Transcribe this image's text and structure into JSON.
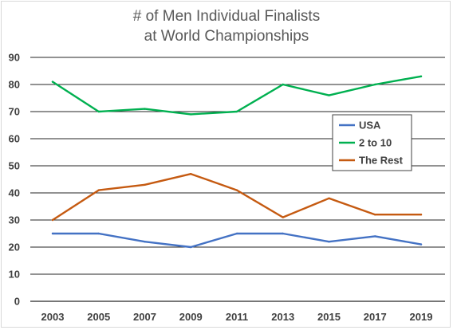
{
  "chart_data": {
    "type": "line",
    "title": [
      "# of Men Individual Finalists",
      "at World Championships"
    ],
    "xlabel": "",
    "ylabel": "",
    "x": [
      "2003",
      "2005",
      "2007",
      "2009",
      "2011",
      "2013",
      "2015",
      "2017",
      "2019"
    ],
    "ylim": [
      0,
      90
    ],
    "yticks": [
      0,
      10,
      20,
      30,
      40,
      50,
      60,
      70,
      80,
      90
    ],
    "grid": true,
    "legend_position": "right",
    "series": [
      {
        "name": "USA",
        "color": "#4472c4",
        "values": [
          25,
          25,
          22,
          20,
          25,
          25,
          22,
          24,
          21
        ]
      },
      {
        "name": "2 to 10",
        "color": "#00b050",
        "values": [
          81,
          70,
          71,
          69,
          70,
          80,
          76,
          80,
          83
        ]
      },
      {
        "name": "The Rest",
        "color": "#c55a11",
        "values": [
          30,
          41,
          43,
          47,
          41,
          31,
          38,
          32,
          32
        ]
      }
    ]
  }
}
